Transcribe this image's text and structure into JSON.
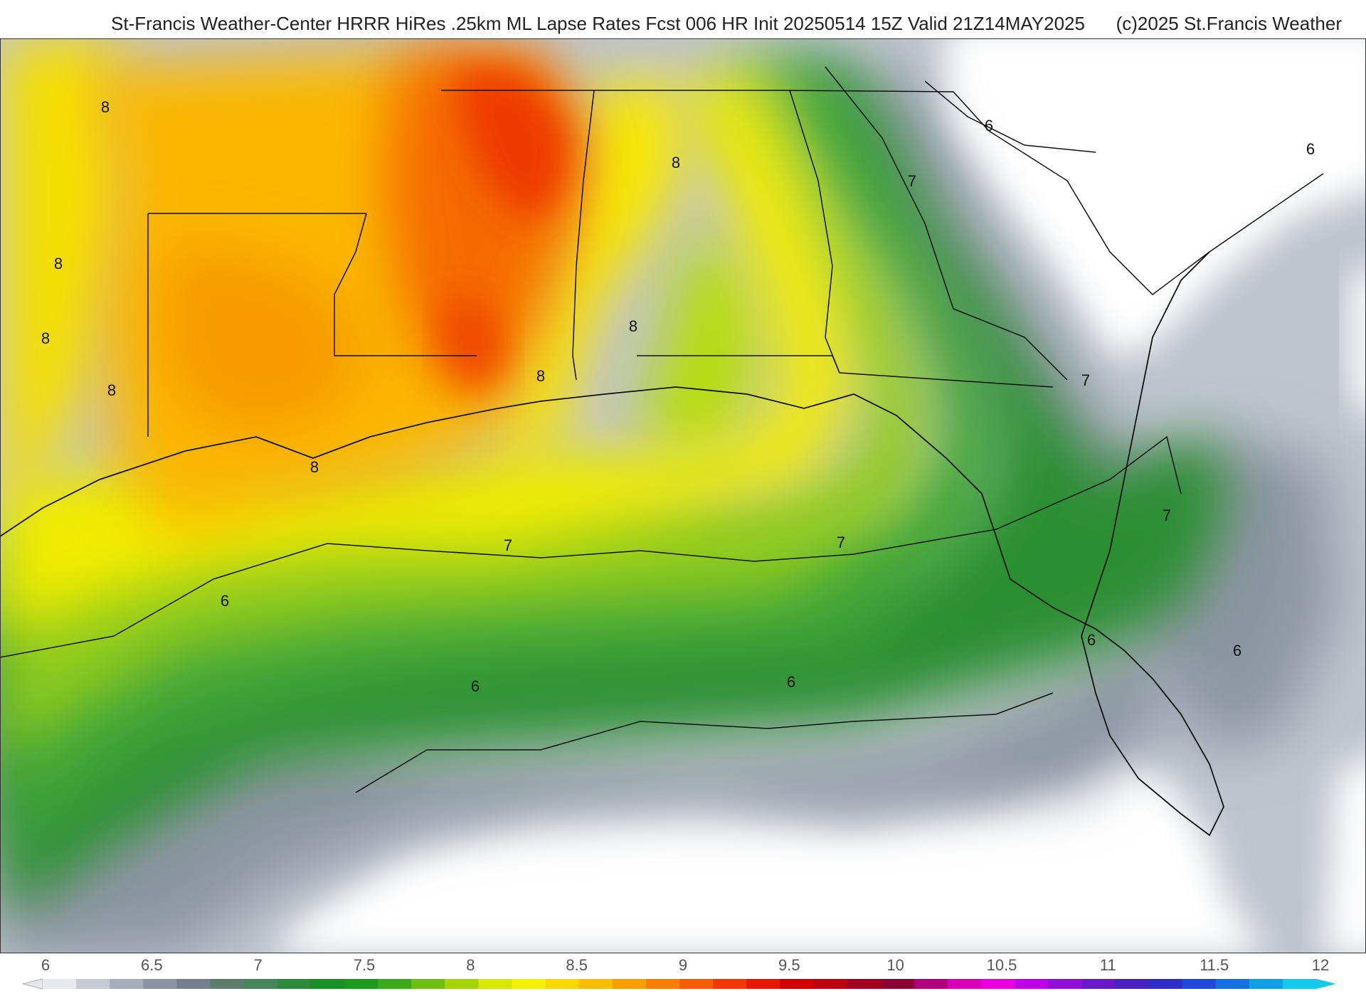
{
  "header": {
    "title": "St-Francis Weather-Center HRRR HiRes .25km ML Lapse Rates  Fcst 006 HR Init 20250514 15Z  Valid 21Z14MAY2025",
    "credit": "(c)2025 St.Francis Weather"
  },
  "map": {
    "region": "US Gulf Coast and Southeast",
    "contour_labels": [
      "8",
      "8",
      "8",
      "8",
      "8",
      "8",
      "8",
      "8",
      "7",
      "7",
      "7",
      "7",
      "7",
      "6",
      "6",
      "6",
      "6",
      "6"
    ]
  },
  "colorbar": {
    "ticks": [
      "6",
      "6.5",
      "7",
      "7.5",
      "8",
      "8.5",
      "9",
      "9.5",
      "10",
      "10.5",
      "11",
      "11.5",
      "12"
    ],
    "colors": [
      "#e6e8ec",
      "#c6cad3",
      "#a7adba",
      "#8c93a2",
      "#75808c",
      "#5c7d6c",
      "#46855a",
      "#2d8a3a",
      "#1a8f25",
      "#1b9a1d",
      "#3aaa1a",
      "#6fbe12",
      "#a6d40a",
      "#d6e804",
      "#f4f200",
      "#f9d800",
      "#fbbd00",
      "#fb9f00",
      "#fa7f00",
      "#f75d00",
      "#f23a00",
      "#e61a00",
      "#d30000",
      "#bd0010",
      "#a3001f",
      "#8b0030",
      "#b0007a",
      "#d700b8",
      "#e800dd",
      "#c000e4",
      "#9010d8",
      "#6a18c8",
      "#4a22c0",
      "#2f2ec8",
      "#1f48d8",
      "#1570e0",
      "#109ee6",
      "#14c9ea"
    ]
  }
}
